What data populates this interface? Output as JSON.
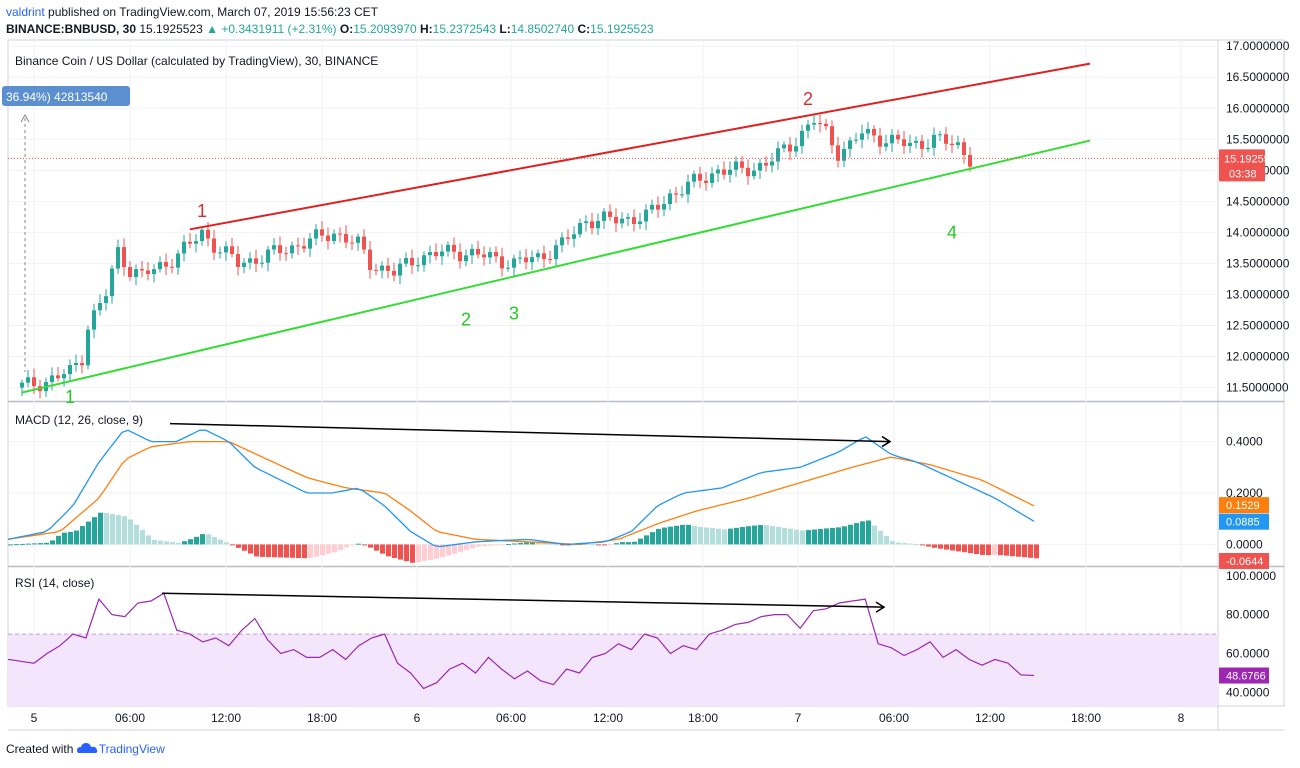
{
  "header": {
    "user": "valdrint",
    "published_text": "published on TradingView.com, March 07, 2019 15:56:23 CET",
    "symbol": "BINANCE:BNBUSD, 30",
    "last": "15.1925523",
    "change": "▲ +0.3431911 (+2.31%)",
    "o_label": "O:",
    "o_value": "15.2093970",
    "h_label": "H:",
    "h_value": "15.2372543",
    "l_label": "L:",
    "l_value": "14.8502740",
    "c_label": "C:",
    "c_value": "15.1925523"
  },
  "footer": {
    "created_with": "Created with",
    "brand": "TradingView"
  },
  "colors": {
    "up": "#26a69a",
    "down": "#ef5350",
    "red_line": "#e02020",
    "green_line": "#33dd33",
    "macd": "#2196f3",
    "signal": "#ff7f0e",
    "rsi": "#9c27b0",
    "rsi_band": "#f3e5fb"
  },
  "chart_data": [
    {
      "type": "candlestick",
      "title": "Binance Coin / US Dollar (calculated by TradingView), 30, BINANCE",
      "ylim": [
        11.3,
        17.1
      ],
      "y_ticks": [
        "17.0000000",
        "16.5000000",
        "16.0000000",
        "15.5000000",
        "15.0000000",
        "14.5000000",
        "14.0000000",
        "13.5000000",
        "13.0000000",
        "12.5000000",
        "12.0000000",
        "11.5000000"
      ],
      "x_ticks": [
        "5",
        "06:00",
        "12:00",
        "18:00",
        "6",
        "06:00",
        "12:00",
        "18:00",
        "7",
        "06:00",
        "12:00",
        "18:00",
        "8"
      ],
      "last_price_label": "15.1925523",
      "countdown_label": "03:38",
      "volume_label": "36.94%) 42813540",
      "close_path": [
        [
          0,
          11.52
        ],
        [
          4,
          11.6
        ],
        [
          8,
          11.75
        ],
        [
          10,
          12.0
        ],
        [
          11,
          12.5
        ],
        [
          14,
          13.0
        ],
        [
          16,
          13.7
        ],
        [
          18,
          13.4
        ],
        [
          20,
          13.3
        ],
        [
          24,
          13.5
        ],
        [
          28,
          13.8
        ],
        [
          30,
          14.0
        ],
        [
          32,
          13.8
        ],
        [
          36,
          13.5
        ],
        [
          40,
          13.6
        ],
        [
          46,
          13.8
        ],
        [
          52,
          14.0
        ],
        [
          56,
          13.8
        ],
        [
          58,
          13.5
        ],
        [
          62,
          13.35
        ],
        [
          66,
          13.6
        ],
        [
          72,
          13.7
        ],
        [
          78,
          13.6
        ],
        [
          82,
          13.5
        ],
        [
          86,
          13.6
        ],
        [
          90,
          13.8
        ],
        [
          94,
          14.2
        ],
        [
          98,
          14.2
        ],
        [
          104,
          14.25
        ],
        [
          108,
          14.6
        ],
        [
          112,
          14.8
        ],
        [
          116,
          15.0
        ],
        [
          120,
          15.0
        ],
        [
          124,
          15.1
        ],
        [
          128,
          15.4
        ],
        [
          130,
          15.6
        ],
        [
          132,
          15.8
        ],
        [
          134,
          15.6
        ],
        [
          136,
          15.3
        ],
        [
          138,
          15.4
        ],
        [
          140,
          15.6
        ],
        [
          144,
          15.5
        ],
        [
          148,
          15.4
        ],
        [
          152,
          15.5
        ],
        [
          156,
          15.4
        ],
        [
          158,
          15.19
        ]
      ],
      "annotations": [
        {
          "text": "1",
          "color": "red",
          "x": 30,
          "y": 14.25
        },
        {
          "text": "2",
          "color": "red",
          "x": 131,
          "y": 16.05
        },
        {
          "text": "1",
          "color": "green",
          "x": 8,
          "y": 11.25
        },
        {
          "text": "2",
          "color": "green",
          "x": 74,
          "y": 12.5
        },
        {
          "text": "3",
          "color": "green",
          "x": 82,
          "y": 12.6
        },
        {
          "text": "4",
          "color": "green",
          "x": 155,
          "y": 13.9
        }
      ],
      "trendlines": [
        {
          "color": "red",
          "from": [
            28,
            14.05
          ],
          "to": [
            178,
            16.72
          ]
        },
        {
          "color": "green",
          "from": [
            0,
            11.42
          ],
          "to": [
            178,
            15.48
          ]
        }
      ]
    },
    {
      "type": "line",
      "title": "MACD (12, 26, close, 9)",
      "ylim": [
        -0.08,
        0.55
      ],
      "y_ticks": [
        "0.4000",
        "0.2000",
        "0.0000"
      ],
      "labels": {
        "signal": "0.1529",
        "macd": "0.0885",
        "hist": "-0.0644"
      },
      "macd_path": [
        [
          0,
          0.02
        ],
        [
          6,
          0.05
        ],
        [
          10,
          0.15
        ],
        [
          14,
          0.32
        ],
        [
          18,
          0.45
        ],
        [
          22,
          0.4
        ],
        [
          26,
          0.4
        ],
        [
          30,
          0.45
        ],
        [
          34,
          0.4
        ],
        [
          38,
          0.3
        ],
        [
          42,
          0.25
        ],
        [
          46,
          0.2
        ],
        [
          50,
          0.2
        ],
        [
          54,
          0.22
        ],
        [
          58,
          0.15
        ],
        [
          62,
          0.05
        ],
        [
          66,
          -0.01
        ],
        [
          72,
          0.01
        ],
        [
          80,
          0.02
        ],
        [
          86,
          0.0
        ],
        [
          92,
          0.01
        ],
        [
          96,
          0.05
        ],
        [
          100,
          0.15
        ],
        [
          104,
          0.2
        ],
        [
          110,
          0.22
        ],
        [
          116,
          0.28
        ],
        [
          122,
          0.3
        ],
        [
          128,
          0.36
        ],
        [
          132,
          0.42
        ],
        [
          136,
          0.35
        ],
        [
          140,
          0.32
        ],
        [
          146,
          0.25
        ],
        [
          152,
          0.18
        ],
        [
          158,
          0.09
        ]
      ],
      "signal_path": [
        [
          0,
          0.02
        ],
        [
          8,
          0.05
        ],
        [
          14,
          0.18
        ],
        [
          18,
          0.33
        ],
        [
          22,
          0.38
        ],
        [
          28,
          0.4
        ],
        [
          34,
          0.4
        ],
        [
          40,
          0.33
        ],
        [
          46,
          0.26
        ],
        [
          52,
          0.22
        ],
        [
          58,
          0.2
        ],
        [
          62,
          0.13
        ],
        [
          66,
          0.05
        ],
        [
          72,
          0.02
        ],
        [
          80,
          0.01
        ],
        [
          88,
          0.0
        ],
        [
          94,
          0.02
        ],
        [
          100,
          0.08
        ],
        [
          106,
          0.13
        ],
        [
          114,
          0.18
        ],
        [
          122,
          0.24
        ],
        [
          130,
          0.3
        ],
        [
          136,
          0.34
        ],
        [
          142,
          0.31
        ],
        [
          150,
          0.25
        ],
        [
          158,
          0.15
        ]
      ],
      "divergence_arrow": {
        "from": [
          18,
          0.47
        ],
        "to": [
          134,
          0.4
        ]
      }
    },
    {
      "type": "line",
      "title": "RSI (14, close)",
      "ylim": [
        33,
        104
      ],
      "y_ticks": [
        "100.0000",
        "80.0000",
        "60.0000",
        "40.0000"
      ],
      "band": [
        30,
        70
      ],
      "value_label": "48.6766",
      "rsi_path": [
        [
          0,
          57
        ],
        [
          4,
          55
        ],
        [
          6,
          60
        ],
        [
          8,
          64
        ],
        [
          10,
          70
        ],
        [
          12,
          68
        ],
        [
          14,
          88
        ],
        [
          16,
          80
        ],
        [
          18,
          79
        ],
        [
          20,
          86
        ],
        [
          22,
          87
        ],
        [
          24,
          91
        ],
        [
          26,
          72
        ],
        [
          28,
          70
        ],
        [
          30,
          66
        ],
        [
          32,
          68
        ],
        [
          34,
          64
        ],
        [
          36,
          72
        ],
        [
          38,
          78
        ],
        [
          40,
          67
        ],
        [
          42,
          60
        ],
        [
          44,
          62
        ],
        [
          46,
          58
        ],
        [
          48,
          58
        ],
        [
          50,
          62
        ],
        [
          52,
          57
        ],
        [
          54,
          64
        ],
        [
          56,
          68
        ],
        [
          58,
          70
        ],
        [
          60,
          55
        ],
        [
          62,
          50
        ],
        [
          64,
          42
        ],
        [
          66,
          45
        ],
        [
          68,
          52
        ],
        [
          70,
          55
        ],
        [
          72,
          50
        ],
        [
          74,
          58
        ],
        [
          76,
          52
        ],
        [
          78,
          47
        ],
        [
          80,
          51
        ],
        [
          82,
          46
        ],
        [
          84,
          44
        ],
        [
          86,
          52
        ],
        [
          88,
          50
        ],
        [
          90,
          58
        ],
        [
          92,
          60
        ],
        [
          94,
          65
        ],
        [
          96,
          62
        ],
        [
          98,
          70
        ],
        [
          100,
          68
        ],
        [
          102,
          60
        ],
        [
          104,
          64
        ],
        [
          106,
          62
        ],
        [
          108,
          70
        ],
        [
          110,
          72
        ],
        [
          112,
          75
        ],
        [
          114,
          76
        ],
        [
          116,
          79
        ],
        [
          118,
          80
        ],
        [
          120,
          80
        ],
        [
          122,
          73
        ],
        [
          124,
          82
        ],
        [
          126,
          83
        ],
        [
          128,
          86
        ],
        [
          130,
          87
        ],
        [
          132,
          88
        ],
        [
          134,
          65
        ],
        [
          136,
          63
        ],
        [
          138,
          59
        ],
        [
          140,
          62
        ],
        [
          142,
          66
        ],
        [
          144,
          58
        ],
        [
          146,
          62
        ],
        [
          148,
          57
        ],
        [
          150,
          54
        ],
        [
          152,
          57
        ],
        [
          154,
          55
        ],
        [
          156,
          49
        ],
        [
          158,
          48.68
        ]
      ],
      "divergence_arrow": {
        "from": [
          24,
          91
        ],
        "to": [
          132,
          88
        ]
      }
    }
  ]
}
